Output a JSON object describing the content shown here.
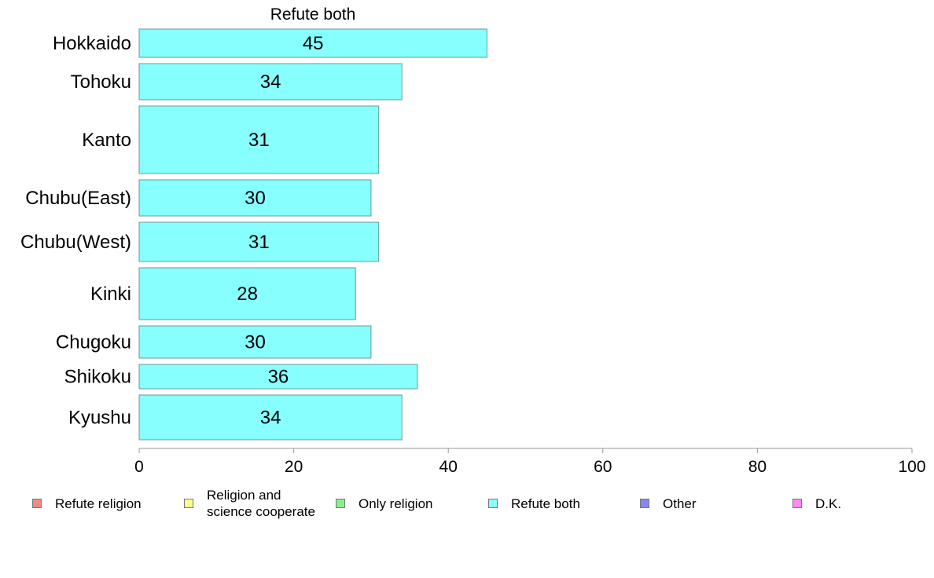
{
  "chart_data": {
    "type": "bar",
    "orientation": "horizontal",
    "title": "Refute both",
    "categories": [
      "Hokkaido",
      "Tohoku",
      "Kanto",
      "Chubu(East)",
      "Chubu(West)",
      "Kinki",
      "Chugoku",
      "Shikoku",
      "Kyushu"
    ],
    "relative_bar_thickness": [
      36,
      46,
      86,
      46,
      50,
      66,
      41,
      31,
      57
    ],
    "series": [
      {
        "name": "Refute both",
        "values": [
          45,
          34,
          31,
          30,
          31,
          28,
          30,
          36,
          34
        ],
        "color": "#87ffff"
      }
    ],
    "data_labels": [
      "45",
      "34",
      "31",
      "30",
      "31",
      "28",
      "30",
      "36",
      "34"
    ],
    "xlim": [
      0,
      100
    ],
    "xticks": [
      "0",
      "20",
      "40",
      "60",
      "80",
      "100"
    ],
    "grid": false,
    "legend_position": "bottom"
  },
  "legend": {
    "items": [
      {
        "label": "Refute religion",
        "color": "#f08a8a"
      },
      {
        "label": "Religion and\nscience cooperate",
        "color": "#ffff87"
      },
      {
        "label": "Only religion",
        "color": "#87f087"
      },
      {
        "label": "Refute both",
        "color": "#87ffff"
      },
      {
        "label": "Other",
        "color": "#8787f0"
      },
      {
        "label": "D.K.",
        "color": "#ff87ff"
      }
    ]
  }
}
